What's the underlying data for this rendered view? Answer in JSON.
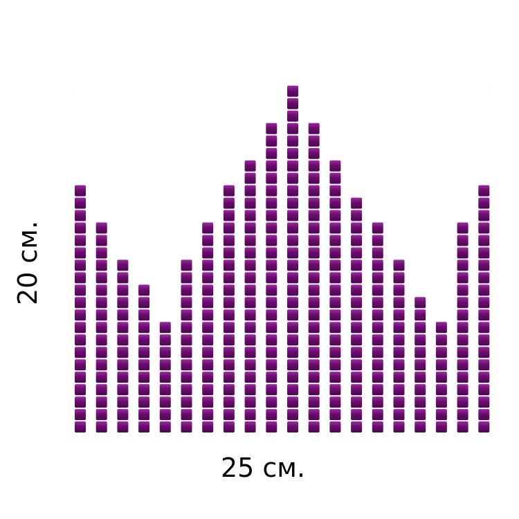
{
  "labels": {
    "width": "25 см.",
    "height": "20 см."
  },
  "mosaic": {
    "column_heights": [
      20,
      17,
      14,
      12,
      9,
      14,
      17,
      20,
      22,
      25,
      28,
      25,
      22,
      19,
      17,
      14,
      11,
      9,
      17,
      20
    ],
    "colors": {
      "tile": "#6a0d6e",
      "tile_highlight": "#9a2aa0",
      "board": "#ffffff"
    }
  }
}
